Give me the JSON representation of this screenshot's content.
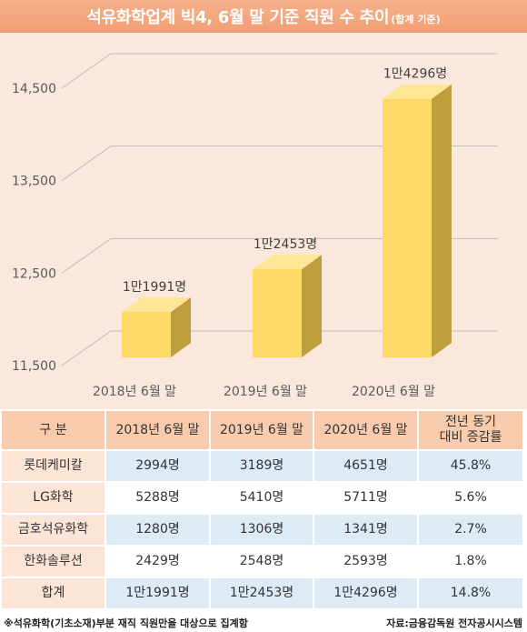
{
  "chart_data": {
    "type": "bar",
    "title": "석유화학업계 빅4, 6월 말 기준 직원 수 추이",
    "subtitle": "(합계 기준)",
    "categories": [
      "2018년 6월 말",
      "2019년 6월 말",
      "2020년 6월 말"
    ],
    "values": [
      11991,
      12453,
      14296
    ],
    "data_labels": [
      "1만1991명",
      "1만2453명",
      "1만4296명"
    ],
    "ylim": [
      11500,
      14500
    ],
    "y_ticks": [
      11500,
      12500,
      13500,
      14500
    ],
    "y_tick_labels": [
      "11,500",
      "12,500",
      "13,500",
      "14,500"
    ],
    "grid": true,
    "colors": {
      "bar_front": "#FFD966",
      "bar_top": "#FFE697",
      "bar_side": "#BF9E3E",
      "grid": "#BFBFBF",
      "title_bar": "#F3A47A"
    }
  },
  "table": {
    "headers": [
      [
        "구 분"
      ],
      [
        "2018년 6월 말"
      ],
      [
        "2019년 6월 말"
      ],
      [
        "2020년 6월 말"
      ],
      [
        "전년 동기",
        "대비 증감률"
      ]
    ],
    "rows": [
      {
        "label": "롯데케미칼",
        "cells": [
          "2994명",
          "3189명",
          "4651명",
          "45.8%"
        ]
      },
      {
        "label": "LG화학",
        "cells": [
          "5288명",
          "5410명",
          "5711명",
          "5.6%"
        ]
      },
      {
        "label": "금호석유화학",
        "cells": [
          "1280명",
          "1306명",
          "1341명",
          "2.7%"
        ]
      },
      {
        "label": "한화솔루션",
        "cells": [
          "2429명",
          "2548명",
          "2593명",
          "1.8%"
        ]
      },
      {
        "label": "합계",
        "cells": [
          "1만1991명",
          "1만2453명",
          "1만4296명",
          "14.8%"
        ]
      }
    ],
    "colors": {
      "header": "#F8CBAD",
      "label": "#FCE4D6",
      "row_alt": "#DDEBF7",
      "row_plain": "#FFFFFF"
    }
  },
  "footer": {
    "note": "※석유화학(기초소재)부분 재직 직원만을 대상으로 집계함",
    "source": "자료:금융감독원 전자공시시스템"
  }
}
